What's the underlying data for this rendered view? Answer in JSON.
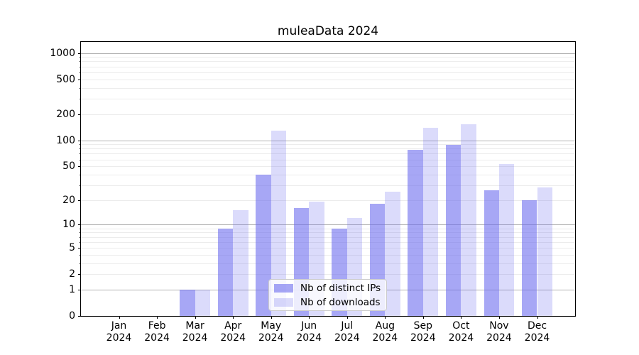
{
  "title": "muleaData 2024",
  "chart_data": {
    "type": "bar",
    "title": "muleaData 2024",
    "categories": [
      "Jan 2024",
      "Feb 2024",
      "Mar 2024",
      "Apr 2024",
      "May 2024",
      "Jun 2024",
      "Jul 2024",
      "Aug 2024",
      "Sep 2024",
      "Oct 2024",
      "Nov 2024",
      "Dec 2024"
    ],
    "month_labels": [
      "Jan",
      "Feb",
      "Mar",
      "Apr",
      "May",
      "Jun",
      "Jul",
      "Aug",
      "Sep",
      "Oct",
      "Nov",
      "Dec"
    ],
    "year_label": "2024",
    "series": [
      {
        "name": "Nb of distinct IPs",
        "color": "rgba(104,104,238,0.58)",
        "values": [
          0,
          0,
          1,
          9,
          40,
          16,
          9,
          18,
          77,
          88,
          26,
          20
        ]
      },
      {
        "name": "Nb of downloads",
        "color": "rgba(104,104,238,0.24)",
        "values": [
          0,
          0,
          1,
          15,
          130,
          19,
          12,
          25,
          140,
          152,
          53,
          28
        ]
      }
    ],
    "xlabel": "",
    "ylabel": "",
    "yscale": "log1p",
    "ylim": [
      0,
      1335
    ],
    "yticks": [
      0,
      1,
      2,
      5,
      10,
      20,
      50,
      100,
      200,
      500,
      1000
    ],
    "ytick_labels": [
      "0",
      "1",
      "2",
      "5",
      "10",
      "20",
      "50",
      "100",
      "200",
      "500",
      "1000"
    ],
    "major_gridlines": [
      1,
      10,
      100,
      1000
    ],
    "minor_gridlines": [
      2,
      3,
      4,
      5,
      6,
      7,
      8,
      9,
      20,
      30,
      40,
      50,
      60,
      70,
      80,
      90,
      200,
      300,
      400,
      500,
      600,
      700,
      800,
      900
    ],
    "grid": "on",
    "legend_position": "lower center",
    "bar_layout": "paired"
  },
  "colors": {
    "background": "#ffffff",
    "axis": "#000000",
    "major_grid": "#b2b2b2",
    "minor_grid": "#ececec",
    "bar_base": "#6868ee"
  }
}
